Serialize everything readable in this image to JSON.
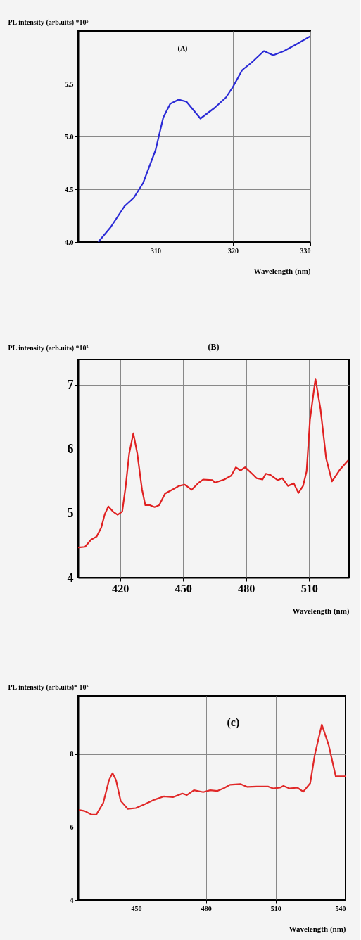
{
  "chart_data": [
    {
      "type": "line",
      "title": "(A)",
      "xlabel": "Wavelength (nm)",
      "ylabel": "PL intensity (arb.uits) *10⁵",
      "xlim": [
        300,
        330
      ],
      "xticks": [
        310,
        320,
        330
      ],
      "ylim": [
        4.0,
        6.0
      ],
      "yticks": [
        {
          "value": 4.0,
          "label": "4.0"
        },
        {
          "value": 4.5,
          "label": "4.5"
        },
        {
          "value": 5.0,
          "label": "5.0"
        },
        {
          "value": 5.5,
          "label": "5.5"
        }
      ],
      "grid": true,
      "series": [
        {
          "color": "#2b2bd6",
          "x": [
            302.6,
            304.2,
            306.0,
            307.2,
            308.4,
            310.0,
            311.0,
            311.9,
            313.0,
            314.0,
            314.9,
            315.8,
            317.6,
            319.1,
            320.0,
            321.2,
            322.4,
            324.0,
            325.2,
            326.6,
            328.1,
            330.0
          ],
          "values": [
            4.0,
            4.14,
            4.34,
            4.42,
            4.56,
            4.87,
            5.18,
            5.31,
            5.35,
            5.33,
            5.25,
            5.17,
            5.27,
            5.37,
            5.47,
            5.63,
            5.7,
            5.81,
            5.77,
            5.81,
            5.87,
            5.95
          ]
        }
      ]
    },
    {
      "type": "line",
      "title": "(B)",
      "xlabel": "Wavelength (nm)",
      "ylabel": "PL intensity (arb.uits) *10⁵",
      "xlim": [
        400,
        529
      ],
      "xticks": [
        420,
        450,
        480,
        510
      ],
      "ylim": [
        4,
        7.4
      ],
      "yticks": [
        4,
        5,
        6,
        7
      ],
      "grid": true,
      "series": [
        {
          "color": "#e02020",
          "x": [
            400,
            403.3,
            406.1,
            408.8,
            411.0,
            412.7,
            414.4,
            416.6,
            418.8,
            421.0,
            422.6,
            424.3,
            426.3,
            428.2,
            430.4,
            432.0,
            434.2,
            436.4,
            438.6,
            441.4,
            445.3,
            448.0,
            450.8,
            454.1,
            457.4,
            459.6,
            464.0,
            465.1,
            469.6,
            472.9,
            475.1,
            477.3,
            479.5,
            482.8,
            485.0,
            487.8,
            489.4,
            491.6,
            495.0,
            497.2,
            499.9,
            502.7,
            504.9,
            507.1,
            508.8,
            510.4,
            513.0,
            515.4,
            518.1,
            520.9,
            524.8,
            528.6
          ],
          "values": [
            4.47,
            4.48,
            4.59,
            4.64,
            4.78,
            4.99,
            5.11,
            5.03,
            4.98,
            5.03,
            5.41,
            5.93,
            6.25,
            5.93,
            5.38,
            5.13,
            5.13,
            5.1,
            5.13,
            5.31,
            5.38,
            5.43,
            5.45,
            5.37,
            5.48,
            5.53,
            5.52,
            5.48,
            5.53,
            5.59,
            5.72,
            5.67,
            5.72,
            5.62,
            5.55,
            5.53,
            5.62,
            5.6,
            5.52,
            5.55,
            5.43,
            5.47,
            5.32,
            5.43,
            5.66,
            6.46,
            7.1,
            6.63,
            5.86,
            5.5,
            5.69,
            5.83
          ]
        }
      ]
    },
    {
      "type": "line",
      "title": "(c)",
      "xlabel": "Wavelength (nm)",
      "ylabel": "PL intensity (arb.uits)* 10⁵",
      "xlim": [
        425,
        540
      ],
      "xticks": [
        450,
        480,
        510,
        540
      ],
      "ylim": [
        4,
        9.6
      ],
      "yticks": [
        4,
        6,
        8
      ],
      "grid": true,
      "series": [
        {
          "color": "#e02828",
          "x": [
            425.3,
            427.8,
            430.8,
            432.8,
            435.8,
            438.3,
            439.8,
            441.3,
            443.3,
            446.3,
            449.8,
            453.8,
            457.8,
            461.8,
            465.8,
            469.8,
            471.8,
            474.8,
            478.8,
            481.8,
            484.8,
            487.8,
            490.3,
            494.8,
            497.8,
            501.8,
            506.8,
            508.8,
            511.8,
            513.3,
            515.8,
            519.3,
            521.8,
            524.8,
            526.8,
            529.8,
            532.8,
            535.8,
            540.0
          ],
          "values": [
            6.47,
            6.44,
            6.34,
            6.34,
            6.66,
            7.29,
            7.48,
            7.29,
            6.72,
            6.5,
            6.52,
            6.63,
            6.75,
            6.84,
            6.82,
            6.92,
            6.88,
            7.01,
            6.96,
            7.01,
            6.99,
            7.07,
            7.16,
            7.18,
            7.1,
            7.11,
            7.11,
            7.06,
            7.08,
            7.13,
            7.06,
            7.08,
            6.97,
            7.2,
            7.99,
            8.81,
            8.24,
            7.39,
            7.39
          ]
        }
      ]
    }
  ]
}
